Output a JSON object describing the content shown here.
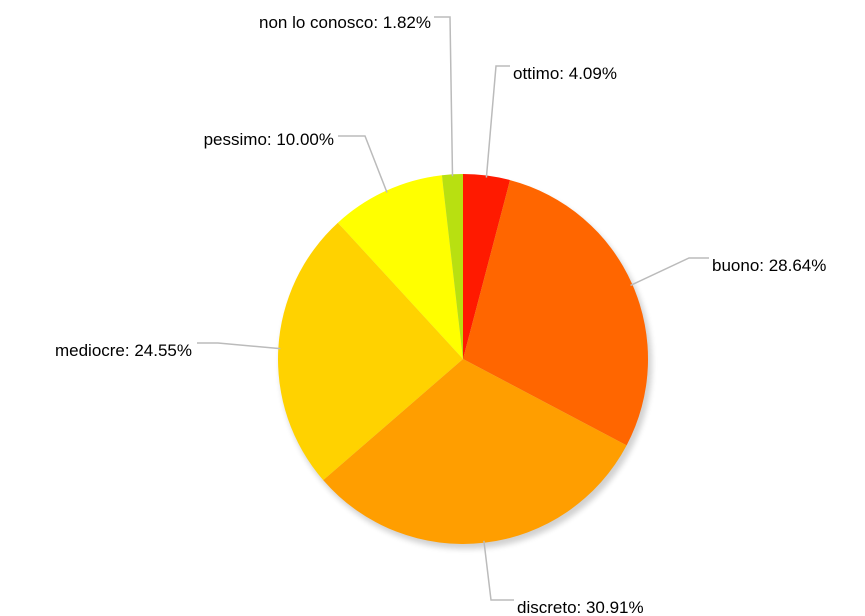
{
  "chart_data": {
    "type": "pie",
    "slices": [
      {
        "label": "ottimo",
        "value": 4.09,
        "text": "ottimo: 4.09%",
        "color": "#ff1a00"
      },
      {
        "label": "buono",
        "value": 28.64,
        "text": "buono: 28.64%",
        "color": "#ff6600"
      },
      {
        "label": "discreto",
        "value": 30.91,
        "text": "discreto: 30.91%",
        "color": "#ff9e00"
      },
      {
        "label": "mediocre",
        "value": 24.55,
        "text": "mediocre: 24.55%",
        "color": "#ffd200"
      },
      {
        "label": "pessimo",
        "value": 10.0,
        "text": "pessimo: 10.00%",
        "color": "#ffff00"
      },
      {
        "label": "non lo conosco",
        "value": 1.82,
        "text": "non lo conosco: 1.82%",
        "color": "#b8e011"
      }
    ],
    "start_angle_deg": 0,
    "direction": "clockwise"
  }
}
